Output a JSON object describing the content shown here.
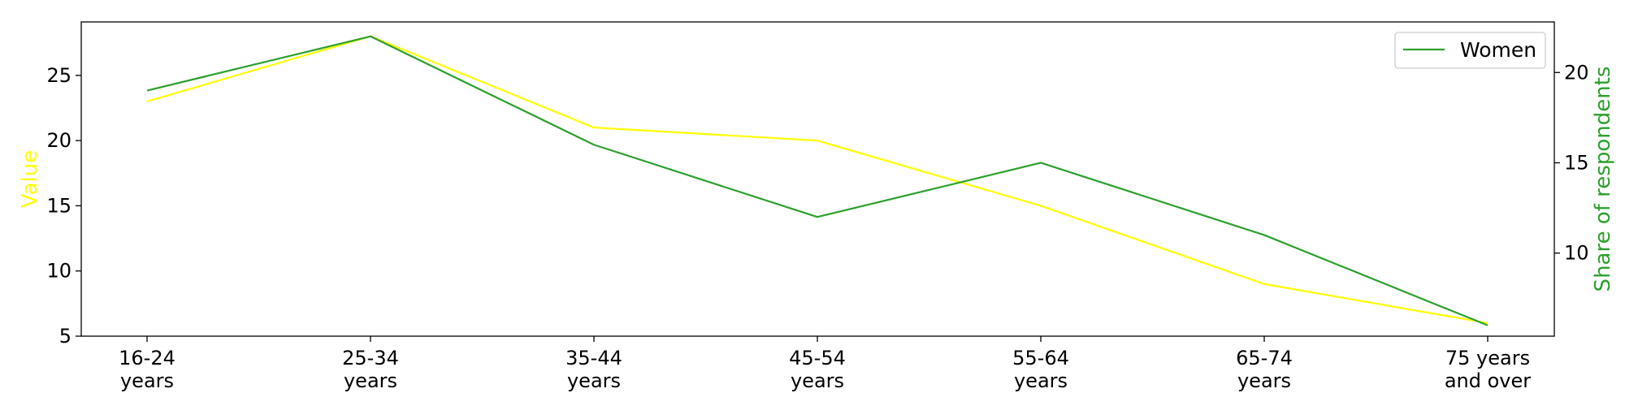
{
  "chart_data": {
    "type": "line",
    "categories": [
      [
        "16-24",
        "years"
      ],
      [
        "25-34",
        "years"
      ],
      [
        "35-44",
        "years"
      ],
      [
        "45-54",
        "years"
      ],
      [
        "55-64",
        "years"
      ],
      [
        "65-74",
        "years"
      ],
      [
        "75 years",
        "and over"
      ]
    ],
    "series": [
      {
        "values": [
          23,
          28,
          21,
          20,
          15,
          9,
          6
        ],
        "color": "#ffff00",
        "axis": "left"
      },
      {
        "name": "Women",
        "values": [
          19,
          22,
          16,
          12,
          15,
          11,
          6
        ],
        "color": "#2ca02c",
        "axis": "right"
      }
    ],
    "ylabel_left": "Value",
    "ylabel_right": "Share of respondents",
    "ylim_left": [
      5,
      29.1
    ],
    "ylim_right": [
      5.4,
      22.8
    ],
    "yticks_left": [
      5,
      10,
      15,
      20,
      25
    ],
    "yticks_right": [
      10,
      15,
      20
    ],
    "legend": {
      "position": "top-right",
      "entries": [
        "Women"
      ]
    },
    "grid": false
  }
}
